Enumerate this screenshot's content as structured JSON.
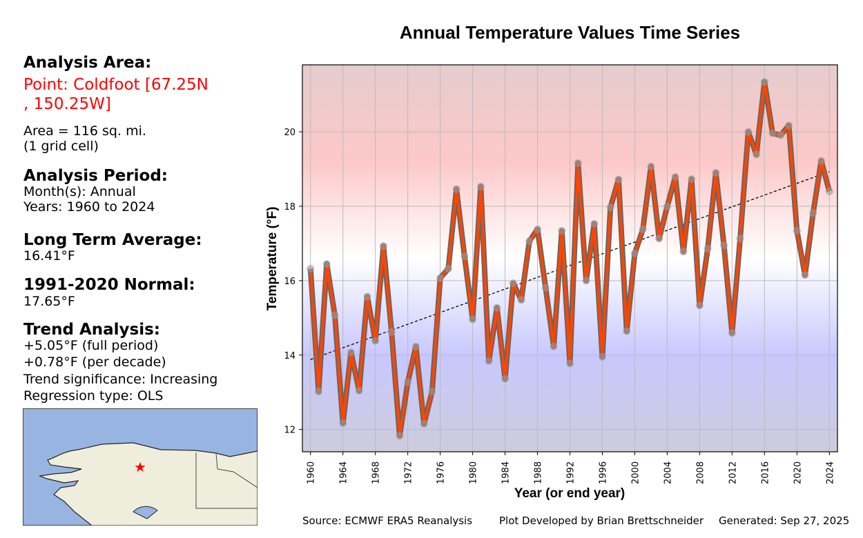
{
  "side": {
    "area_heading": "Analysis Area:",
    "point": "Point: Coldfoot [67.25N , 150.25W]",
    "area": "Area = 116 sq. mi.",
    "cells": "(1 grid cell)",
    "period_heading": "Analysis Period:",
    "months": "Month(s): Annual",
    "years": "Years: 1960 to 2024",
    "lta_heading": "Long Term Average:",
    "lta": "16.41°F",
    "normal_heading": "1991-2020 Normal:",
    "normal": "17.65°F",
    "trend_heading": "Trend Analysis:",
    "trend_full": "+5.05°F (full period)",
    "trend_decade": "+0.78°F (per decade)",
    "significance": "Trend significance: Increasing",
    "regression": "Regression type: OLS"
  },
  "footer": {
    "source": "Source: ECMWF ERA5 Reanalysis",
    "developer": "Plot Developed by Brian Brettschneider",
    "generated": "Generated: Sep 27, 2025"
  },
  "colors": {
    "line": "#ff4500",
    "line_edge": "#666666",
    "marker": "#999999",
    "marker_star": "#ff0000",
    "land": "#efeedc",
    "water": "#98b4e0"
  },
  "chart_data": {
    "type": "line",
    "title": "Annual Temperature Values Time Series",
    "xlabel": "Year (or end year)",
    "ylabel": "Temperature (°F)",
    "xlim": [
      1959,
      2025
    ],
    "ylim": [
      11.4,
      21.8
    ],
    "xticks": [
      1960,
      1964,
      1968,
      1972,
      1976,
      1980,
      1984,
      1988,
      1992,
      1996,
      2000,
      2004,
      2008,
      2012,
      2016,
      2020,
      2024
    ],
    "yticks": [
      12,
      14,
      16,
      18,
      20
    ],
    "grid": true,
    "x": [
      1960,
      1961,
      1962,
      1963,
      1964,
      1965,
      1966,
      1967,
      1968,
      1969,
      1970,
      1971,
      1972,
      1973,
      1974,
      1975,
      1976,
      1977,
      1978,
      1979,
      1980,
      1981,
      1982,
      1983,
      1984,
      1985,
      1986,
      1987,
      1988,
      1989,
      1990,
      1991,
      1992,
      1993,
      1994,
      1995,
      1996,
      1997,
      1998,
      1999,
      2000,
      2001,
      2002,
      2003,
      2004,
      2005,
      2006,
      2007,
      2008,
      2009,
      2010,
      2011,
      2012,
      2013,
      2014,
      2015,
      2016,
      2017,
      2018,
      2019,
      2020,
      2021,
      2022,
      2023,
      2024
    ],
    "y": [
      16.32,
      13.02,
      16.45,
      15.07,
      12.17,
      14.07,
      13.04,
      15.57,
      14.38,
      16.93,
      14.62,
      11.83,
      13.27,
      14.23,
      12.15,
      13.02,
      16.07,
      16.32,
      18.46,
      16.65,
      14.96,
      18.53,
      13.84,
      15.27,
      13.36,
      15.93,
      15.48,
      17.06,
      17.38,
      15.81,
      14.23,
      17.34,
      13.77,
      19.16,
      16.0,
      17.53,
      13.95,
      17.97,
      18.72,
      14.64,
      16.73,
      17.38,
      19.07,
      17.13,
      17.99,
      18.79,
      16.78,
      18.73,
      15.33,
      16.86,
      18.9,
      16.95,
      14.59,
      17.13,
      20.0,
      19.39,
      21.34,
      19.96,
      19.91,
      20.17,
      17.34,
      16.15,
      17.82,
      19.22,
      18.4
    ],
    "trend": {
      "x": [
        1960,
        2024
      ],
      "y": [
        13.88,
        18.93
      ]
    }
  }
}
